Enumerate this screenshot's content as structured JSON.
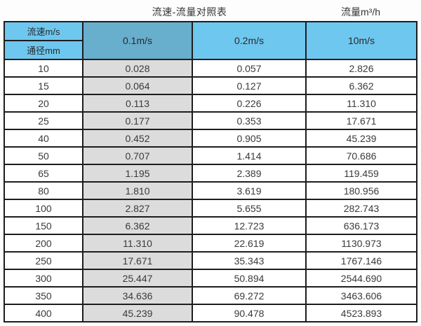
{
  "page": {
    "title_left": "流速-流量对照表",
    "title_right": "流量m³/h"
  },
  "colors": {
    "header_blue": "#6ec7ef",
    "header_muted_blue": "#68aecd",
    "data_column_gray": "#dcdcdc",
    "border": "#1d1d1d",
    "text": "#333333"
  },
  "table": {
    "corner_top_label": "流速m/s",
    "corner_bottom_label": "通径mm",
    "velocity_headers": [
      "0.1m/s",
      "0.2m/s",
      "10m/s"
    ],
    "rows": [
      {
        "diameter": "10",
        "values": [
          "0.028",
          "0.057",
          "2.826"
        ]
      },
      {
        "diameter": "15",
        "values": [
          "0.064",
          "0.127",
          "6.362"
        ]
      },
      {
        "diameter": "20",
        "values": [
          "0.113",
          "0.226",
          "11.310"
        ]
      },
      {
        "diameter": "25",
        "values": [
          "0.177",
          "0.353",
          "17.671"
        ]
      },
      {
        "diameter": "40",
        "values": [
          "0.452",
          "0.905",
          "45.239"
        ]
      },
      {
        "diameter": "50",
        "values": [
          "0.707",
          "1.414",
          "70.686"
        ]
      },
      {
        "diameter": "65",
        "values": [
          "1.195",
          "2.389",
          "119.459"
        ]
      },
      {
        "diameter": "80",
        "values": [
          "1.810",
          "3.619",
          "180.956"
        ]
      },
      {
        "diameter": "100",
        "values": [
          "2.827",
          "5.655",
          "282.743"
        ]
      },
      {
        "diameter": "150",
        "values": [
          "6.362",
          "12.723",
          "636.173"
        ]
      },
      {
        "diameter": "200",
        "values": [
          "11.310",
          "22.619",
          "1130.973"
        ]
      },
      {
        "diameter": "250",
        "values": [
          "17.671",
          "35.343",
          "1767.146"
        ]
      },
      {
        "diameter": "300",
        "values": [
          "25.447",
          "50.894",
          "2544.690"
        ]
      },
      {
        "diameter": "350",
        "values": [
          "34.636",
          "69.272",
          "3463.606"
        ]
      },
      {
        "diameter": "400",
        "values": [
          "45.239",
          "90.478",
          "4523.893"
        ]
      }
    ]
  },
  "chart_data": {
    "type": "table",
    "title": "流速-流量对照表",
    "unit_note": "流量m³/h",
    "columns": [
      "通径mm",
      "0.1m/s",
      "0.2m/s",
      "10m/s"
    ],
    "rows": [
      [
        10,
        0.028,
        0.057,
        2.826
      ],
      [
        15,
        0.064,
        0.127,
        6.362
      ],
      [
        20,
        0.113,
        0.226,
        11.31
      ],
      [
        25,
        0.177,
        0.353,
        17.671
      ],
      [
        40,
        0.452,
        0.905,
        45.239
      ],
      [
        50,
        0.707,
        1.414,
        70.686
      ],
      [
        65,
        1.195,
        2.389,
        119.459
      ],
      [
        80,
        1.81,
        3.619,
        180.956
      ],
      [
        100,
        2.827,
        5.655,
        282.743
      ],
      [
        150,
        6.362,
        12.723,
        636.173
      ],
      [
        200,
        11.31,
        22.619,
        1130.973
      ],
      [
        250,
        17.671,
        35.343,
        1767.146
      ],
      [
        300,
        25.447,
        50.894,
        2544.69
      ],
      [
        350,
        34.636,
        69.272,
        3463.606
      ],
      [
        400,
        45.239,
        90.478,
        4523.893
      ]
    ]
  }
}
